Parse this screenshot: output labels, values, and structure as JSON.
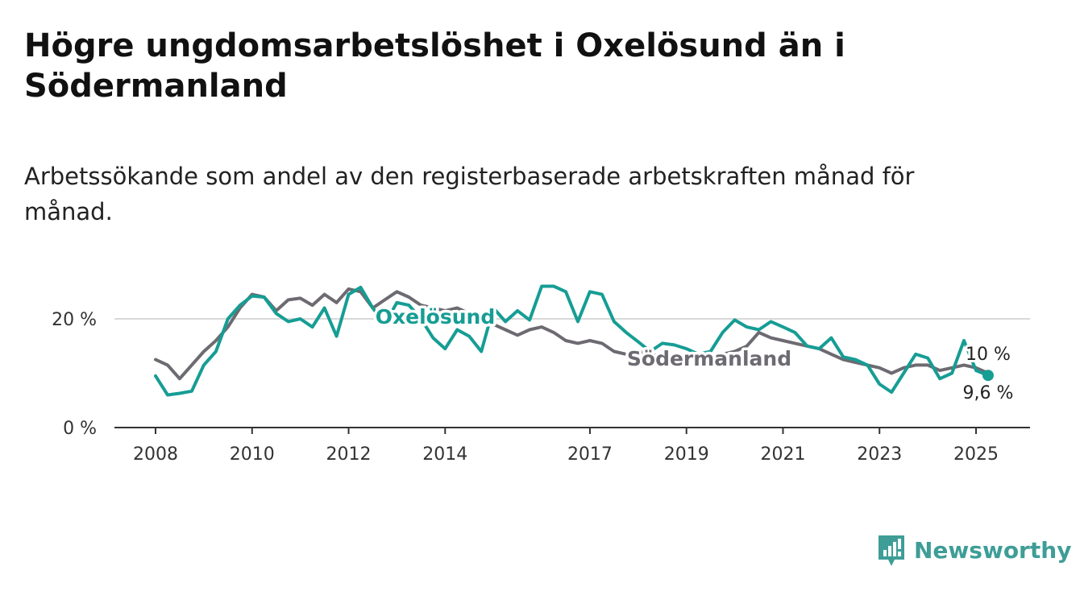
{
  "title": "Högre ungdomsarbetslöshet i Oxelösund än i Södermanland",
  "subtitle": "Arbetssökande som andel av den registerbaserade arbetskraften månad för månad.",
  "brand": {
    "name": "Newsworthy",
    "icon": "newsworthy-logo-icon",
    "color": "#3e9d97"
  },
  "chart_data": {
    "type": "line",
    "title": "Högre ungdomsarbetslöshet i Oxelösund än i Södermanland",
    "subtitle": "Arbetssökande som andel av den registerbaserade arbetskraften månad för månad.",
    "xlabel": "",
    "ylabel": "",
    "x_ticks": [
      "2008",
      "2010",
      "2012",
      "2014",
      "2017",
      "2019",
      "2021",
      "2023",
      "2025"
    ],
    "y_ticks": [
      "0 %",
      "20 %"
    ],
    "ylim": [
      0,
      30
    ],
    "grid": true,
    "legend": "inline labels",
    "series": [
      {
        "name": "Oxelösund",
        "color": "#169d94",
        "end_label": "9,6 %",
        "points": [
          [
            "2008-01",
            9.5
          ],
          [
            "2008-04",
            6.0
          ],
          [
            "2008-07",
            6.3
          ],
          [
            "2008-10",
            6.7
          ],
          [
            "2009-01",
            11.5
          ],
          [
            "2009-04",
            14.0
          ],
          [
            "2009-07",
            20.0
          ],
          [
            "2009-10",
            22.5
          ],
          [
            "2010-01",
            24.2
          ],
          [
            "2010-04",
            24.0
          ],
          [
            "2010-07",
            21.0
          ],
          [
            "2010-10",
            19.5
          ],
          [
            "2011-01",
            20.0
          ],
          [
            "2011-04",
            18.5
          ],
          [
            "2011-07",
            22.0
          ],
          [
            "2011-10",
            16.8
          ],
          [
            "2012-01",
            24.5
          ],
          [
            "2012-04",
            25.8
          ],
          [
            "2012-07",
            22.0
          ],
          [
            "2012-10",
            19.0
          ],
          [
            "2013-01",
            23.0
          ],
          [
            "2013-04",
            22.5
          ],
          [
            "2013-07",
            20.0
          ],
          [
            "2013-10",
            16.5
          ],
          [
            "2014-01",
            14.5
          ],
          [
            "2014-04",
            18.0
          ],
          [
            "2014-07",
            16.8
          ],
          [
            "2014-10",
            14.0
          ],
          [
            "2015-01",
            22.0
          ],
          [
            "2015-04",
            19.5
          ],
          [
            "2015-07",
            21.5
          ],
          [
            "2015-10",
            19.8
          ],
          [
            "2016-01",
            26.0
          ],
          [
            "2016-04",
            26.0
          ],
          [
            "2016-07",
            25.0
          ],
          [
            "2016-10",
            19.5
          ],
          [
            "2017-01",
            25.0
          ],
          [
            "2017-04",
            24.5
          ],
          [
            "2017-07",
            19.5
          ],
          [
            "2017-10",
            17.5
          ],
          [
            "2018-01",
            15.8
          ],
          [
            "2018-04",
            14.0
          ],
          [
            "2018-07",
            15.5
          ],
          [
            "2018-10",
            15.2
          ],
          [
            "2019-01",
            14.5
          ],
          [
            "2019-04",
            13.5
          ],
          [
            "2019-07",
            14.0
          ],
          [
            "2019-10",
            17.5
          ],
          [
            "2020-01",
            19.8
          ],
          [
            "2020-04",
            18.5
          ],
          [
            "2020-07",
            18.0
          ],
          [
            "2020-10",
            19.5
          ],
          [
            "2021-01",
            18.5
          ],
          [
            "2021-04",
            17.5
          ],
          [
            "2021-07",
            15.0
          ],
          [
            "2021-10",
            14.5
          ],
          [
            "2022-01",
            16.5
          ],
          [
            "2022-04",
            13.0
          ],
          [
            "2022-07",
            12.5
          ],
          [
            "2022-10",
            11.5
          ],
          [
            "2023-01",
            8.0
          ],
          [
            "2023-04",
            6.5
          ],
          [
            "2023-07",
            10.0
          ],
          [
            "2023-10",
            13.5
          ],
          [
            "2024-01",
            12.8
          ],
          [
            "2024-04",
            9.0
          ],
          [
            "2024-07",
            10.0
          ],
          [
            "2024-10",
            16.0
          ],
          [
            "2025-01",
            10.5
          ],
          [
            "2025-04",
            9.6
          ]
        ]
      },
      {
        "name": "Södermanland",
        "color": "#6d6a71",
        "end_label": "10 %",
        "points": [
          [
            "2008-01",
            12.5
          ],
          [
            "2008-04",
            11.5
          ],
          [
            "2008-07",
            9.0
          ],
          [
            "2008-10",
            11.5
          ],
          [
            "2009-01",
            14.0
          ],
          [
            "2009-04",
            16.0
          ],
          [
            "2009-07",
            18.5
          ],
          [
            "2009-10",
            22.0
          ],
          [
            "2010-01",
            24.5
          ],
          [
            "2010-04",
            24.0
          ],
          [
            "2010-07",
            21.5
          ],
          [
            "2010-10",
            23.5
          ],
          [
            "2011-01",
            23.8
          ],
          [
            "2011-04",
            22.5
          ],
          [
            "2011-07",
            24.5
          ],
          [
            "2011-10",
            23.0
          ],
          [
            "2012-01",
            25.5
          ],
          [
            "2012-04",
            25.0
          ],
          [
            "2012-07",
            22.0
          ],
          [
            "2012-10",
            23.5
          ],
          [
            "2013-01",
            25.0
          ],
          [
            "2013-04",
            24.0
          ],
          [
            "2013-07",
            22.5
          ],
          [
            "2013-10",
            22.0
          ],
          [
            "2014-01",
            21.5
          ],
          [
            "2014-04",
            22.0
          ],
          [
            "2014-07",
            21.0
          ],
          [
            "2014-10",
            20.0
          ],
          [
            "2015-01",
            19.0
          ],
          [
            "2015-04",
            18.0
          ],
          [
            "2015-07",
            17.0
          ],
          [
            "2015-10",
            18.0
          ],
          [
            "2016-01",
            18.5
          ],
          [
            "2016-04",
            17.5
          ],
          [
            "2016-07",
            16.0
          ],
          [
            "2016-10",
            15.5
          ],
          [
            "2017-01",
            16.0
          ],
          [
            "2017-04",
            15.5
          ],
          [
            "2017-07",
            14.0
          ],
          [
            "2017-10",
            13.5
          ],
          [
            "2018-01",
            14.0
          ],
          [
            "2018-04",
            13.5
          ],
          [
            "2018-07",
            13.0
          ],
          [
            "2018-10",
            12.5
          ],
          [
            "2019-01",
            13.0
          ],
          [
            "2019-04",
            12.5
          ],
          [
            "2019-07",
            13.0
          ],
          [
            "2019-10",
            13.5
          ],
          [
            "2020-01",
            14.0
          ],
          [
            "2020-04",
            15.0
          ],
          [
            "2020-07",
            17.5
          ],
          [
            "2020-10",
            16.5
          ],
          [
            "2021-01",
            16.0
          ],
          [
            "2021-04",
            15.5
          ],
          [
            "2021-07",
            15.0
          ],
          [
            "2021-10",
            14.5
          ],
          [
            "2022-01",
            13.5
          ],
          [
            "2022-04",
            12.5
          ],
          [
            "2022-07",
            12.0
          ],
          [
            "2022-10",
            11.5
          ],
          [
            "2023-01",
            11.0
          ],
          [
            "2023-04",
            10.0
          ],
          [
            "2023-07",
            11.0
          ],
          [
            "2023-10",
            11.5
          ],
          [
            "2024-01",
            11.5
          ],
          [
            "2024-04",
            10.5
          ],
          [
            "2024-07",
            11.0
          ],
          [
            "2024-10",
            11.5
          ],
          [
            "2025-01",
            11.0
          ],
          [
            "2025-04",
            10.0
          ]
        ]
      }
    ]
  }
}
